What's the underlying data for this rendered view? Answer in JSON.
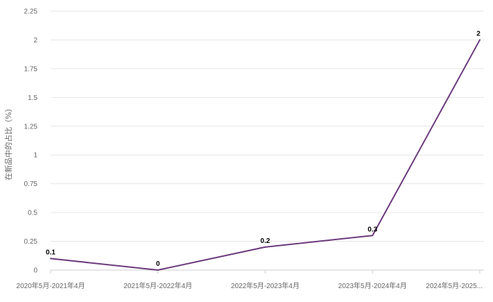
{
  "chart_data": {
    "type": "line",
    "title": "",
    "xlabel": "",
    "ylabel": "在新品中的占比（%）",
    "categories": [
      "2020年5月-2021年4月",
      "2021年5月-2022年4月",
      "2022年5月-2023年4月",
      "2023年5月-2024年4月",
      "2024年5月-2025..."
    ],
    "series": [
      {
        "values": [
          0.1,
          0,
          0.2,
          0.3,
          2
        ],
        "data_labels": [
          "0.1",
          "0",
          "0.2",
          "0.3",
          "2"
        ]
      }
    ],
    "ylim": [
      0,
      2.25
    ],
    "yticks": [
      "0",
      "0.25",
      "0.5",
      "0.75",
      "1",
      "1.25",
      "1.5",
      "1.75",
      "2",
      "2.25"
    ],
    "grid": true,
    "colors": {
      "line": "#6b3a7d",
      "grid": "#e6e6e6",
      "axis": "#cccccc",
      "tick_text": "#666666"
    }
  }
}
